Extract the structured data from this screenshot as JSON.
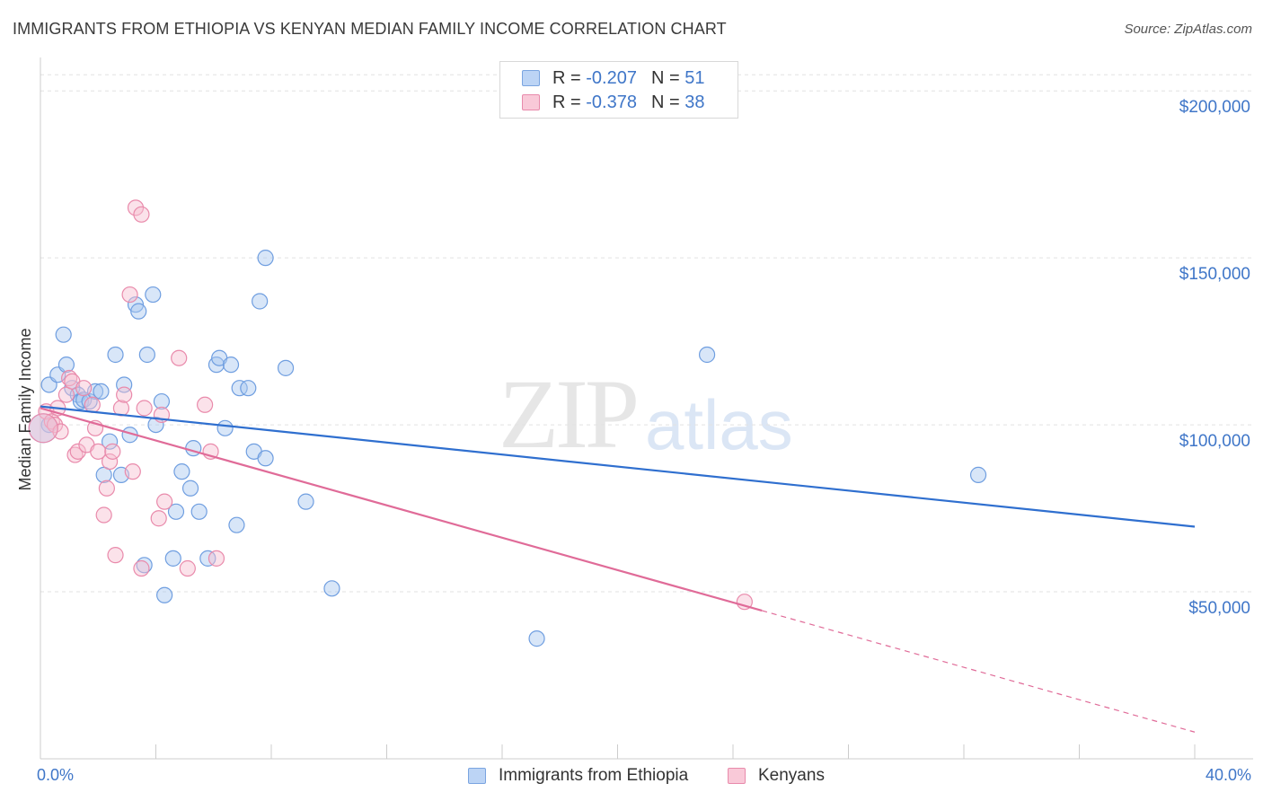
{
  "header": {
    "title": "IMMIGRANTS FROM ETHIOPIA VS KENYAN MEDIAN FAMILY INCOME CORRELATION CHART",
    "source": "Source: ZipAtlas.com"
  },
  "watermark": {
    "zip": "ZIP",
    "atlas": "atlas"
  },
  "legend": {
    "rows": [
      {
        "r_label": "R =",
        "r_value": "-0.207",
        "n_label": "N =",
        "n_value": "51"
      },
      {
        "r_label": "R =",
        "r_value": "-0.378",
        "n_label": "N =",
        "n_value": "38"
      }
    ]
  },
  "bottom_legend": {
    "series1": "Immigrants from Ethiopia",
    "series2": "Kenyans"
  },
  "colors": {
    "blue_fill": "#a9c8f0",
    "blue_stroke": "#6f9ee0",
    "blue_line": "#2f6fcf",
    "pink_fill": "#f7bfd1",
    "pink_stroke": "#e98aab",
    "pink_line": "#e06b98",
    "grid": "#e2e2e2",
    "tick_text": "#3f76c8"
  },
  "chart_data": {
    "type": "scatter",
    "title": "IMMIGRANTS FROM ETHIOPIA VS KENYAN MEDIAN FAMILY INCOME CORRELATION CHART",
    "xlabel": "",
    "ylabel": "Median Family Income",
    "xlim": [
      0,
      40
    ],
    "ylim": [
      0,
      210000
    ],
    "x_tick_labels": [
      "0.0%",
      "40.0%"
    ],
    "y_ticks": [
      50000,
      100000,
      150000,
      200000
    ],
    "y_tick_labels": [
      "$50,000",
      "$100,000",
      "$150,000",
      "$200,000"
    ],
    "grid": true,
    "series": [
      {
        "name": "Immigrants from Ethiopia",
        "color": "blue",
        "R": -0.207,
        "N": 51,
        "trend": {
          "x0": 0,
          "y0": 105500,
          "x1": 40,
          "y1": 69500,
          "dashed_from": null
        },
        "points": [
          [
            0.3,
            112000
          ],
          [
            0.3,
            100000
          ],
          [
            0.6,
            115000
          ],
          [
            0.8,
            127000
          ],
          [
            0.9,
            118000
          ],
          [
            1.1,
            111000
          ],
          [
            1.3,
            109000
          ],
          [
            1.4,
            107000
          ],
          [
            1.5,
            107500
          ],
          [
            1.7,
            107000
          ],
          [
            1.9,
            110000
          ],
          [
            2.1,
            110000
          ],
          [
            2.2,
            85000
          ],
          [
            2.4,
            95000
          ],
          [
            2.6,
            121000
          ],
          [
            2.8,
            85000
          ],
          [
            2.9,
            112000
          ],
          [
            3.1,
            97000
          ],
          [
            3.3,
            136000
          ],
          [
            3.4,
            134000
          ],
          [
            3.6,
            58000
          ],
          [
            3.7,
            121000
          ],
          [
            3.9,
            139000
          ],
          [
            4.0,
            100000
          ],
          [
            4.2,
            107000
          ],
          [
            4.3,
            49000
          ],
          [
            4.6,
            60000
          ],
          [
            4.7,
            74000
          ],
          [
            4.9,
            86000
          ],
          [
            5.2,
            81000
          ],
          [
            5.3,
            93000
          ],
          [
            5.5,
            74000
          ],
          [
            5.8,
            60000
          ],
          [
            6.1,
            118000
          ],
          [
            6.2,
            120000
          ],
          [
            6.4,
            99000
          ],
          [
            6.6,
            118000
          ],
          [
            6.8,
            70000
          ],
          [
            6.9,
            111000
          ],
          [
            7.2,
            111000
          ],
          [
            7.4,
            92000
          ],
          [
            7.6,
            137000
          ],
          [
            7.8,
            150000
          ],
          [
            7.8,
            90000
          ],
          [
            8.5,
            117000
          ],
          [
            9.2,
            77000
          ],
          [
            10.1,
            51000
          ],
          [
            17.2,
            36000
          ],
          [
            23.1,
            121000
          ],
          [
            32.5,
            85000
          ],
          [
            0.1,
            99000
          ]
        ]
      },
      {
        "name": "Kenyans",
        "color": "pink",
        "R": -0.378,
        "N": 38,
        "trend": {
          "x0": 0,
          "y0": 105000,
          "x1": 40,
          "y1": 8000,
          "dashed_from": 25
        },
        "points": [
          [
            0.2,
            104000
          ],
          [
            0.4,
            101000
          ],
          [
            0.5,
            100000
          ],
          [
            0.6,
            105000
          ],
          [
            0.7,
            98000
          ],
          [
            0.9,
            109000
          ],
          [
            1.0,
            114000
          ],
          [
            1.1,
            113000
          ],
          [
            1.2,
            91000
          ],
          [
            1.3,
            92000
          ],
          [
            1.5,
            111000
          ],
          [
            1.6,
            94000
          ],
          [
            1.8,
            106000
          ],
          [
            1.9,
            99000
          ],
          [
            2.0,
            92000
          ],
          [
            2.2,
            73000
          ],
          [
            2.3,
            81000
          ],
          [
            2.4,
            89000
          ],
          [
            2.5,
            92000
          ],
          [
            2.6,
            61000
          ],
          [
            2.8,
            105000
          ],
          [
            2.9,
            109000
          ],
          [
            3.1,
            139000
          ],
          [
            3.2,
            86000
          ],
          [
            3.3,
            165000
          ],
          [
            3.5,
            163000
          ],
          [
            3.5,
            57000
          ],
          [
            3.6,
            105000
          ],
          [
            4.1,
            72000
          ],
          [
            4.2,
            103000
          ],
          [
            4.3,
            77000
          ],
          [
            4.8,
            120000
          ],
          [
            5.1,
            57000
          ],
          [
            5.7,
            106000
          ],
          [
            5.9,
            92000
          ],
          [
            6.1,
            60000
          ],
          [
            24.4,
            47000
          ],
          [
            0.1,
            99000
          ]
        ]
      }
    ]
  }
}
